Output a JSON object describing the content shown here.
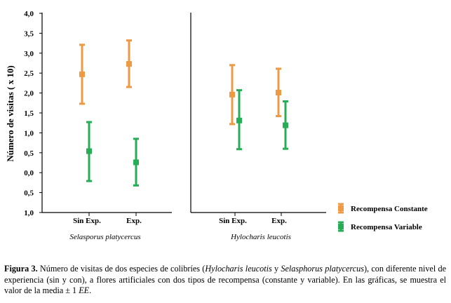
{
  "chart_data": [
    {
      "type": "errorbar",
      "panel": "left",
      "title": "Selasporus platycercus",
      "xlabel": "Selasporus platycercus",
      "ylabel": "Número de visitas ( x 10)",
      "categories": [
        "Sin Exp.",
        "Exp."
      ],
      "ylim": [
        -1.0,
        4.0
      ],
      "yticks": [
        {
          "value": 4.0,
          "label": "4,0"
        },
        {
          "value": 3.5,
          "label": "3,5"
        },
        {
          "value": 3.0,
          "label": "3,0"
        },
        {
          "value": 2.5,
          "label": "2,5"
        },
        {
          "value": 2.0,
          "label": "2,0"
        },
        {
          "value": 1.5,
          "label": "1,5"
        },
        {
          "value": 1.0,
          "label": "1,0"
        },
        {
          "value": 0.5,
          "label": "0,5"
        },
        {
          "value": 0.0,
          "label": "0,0"
        },
        {
          "value": -0.5,
          "label": "0,5"
        },
        {
          "value": -1.0,
          "label": "1,0"
        }
      ],
      "series": [
        {
          "name": "Recompensa Constante",
          "color": "#ee9a45",
          "values": [
            2.47,
            2.73
          ],
          "lower": [
            1.73,
            2.15
          ],
          "upper": [
            3.21,
            3.32
          ]
        },
        {
          "name": "Recompensa Variable",
          "color": "#27ad55",
          "values": [
            0.54,
            0.26
          ],
          "lower": [
            -0.21,
            -0.32
          ],
          "upper": [
            1.27,
            0.85
          ]
        }
      ]
    },
    {
      "type": "errorbar",
      "panel": "right",
      "title": "Hylocharis leucotis",
      "xlabel": "Hylocharis leucotis",
      "categories": [
        "Sin Exp.",
        "Exp."
      ],
      "ylim": [
        -1.0,
        4.0
      ],
      "series": [
        {
          "name": "Recompensa Constante",
          "color": "#ee9a45",
          "values": [
            1.96,
            2.01
          ],
          "lower": [
            1.22,
            1.42
          ],
          "upper": [
            2.7,
            2.61
          ]
        },
        {
          "name": "Recompensa Variable",
          "color": "#27ad55",
          "values": [
            1.31,
            1.19
          ],
          "lower": [
            0.59,
            0.6
          ],
          "upper": [
            2.07,
            1.79
          ]
        }
      ]
    }
  ],
  "legend": [
    {
      "label": "Recompensa Constante",
      "color": "#ee9a45"
    },
    {
      "label": "Recompensa Variable",
      "color": "#27ad55"
    }
  ],
  "caption": {
    "label": "Figura 3.",
    "text_1": " Número de visitas de dos especies de colibríes (",
    "species_1": "Hylocharis leucotis",
    "text_2": " y ",
    "species_2": "Selasphorus platycercus",
    "text_3": "), con diferente nivel de experiencia (sin y con), a flores artificiales con dos tipos de recompensa (constante y variable). En las gráficas, se muestra el valor de la media ± 1 ",
    "ee": "EE",
    "text_4": "."
  }
}
